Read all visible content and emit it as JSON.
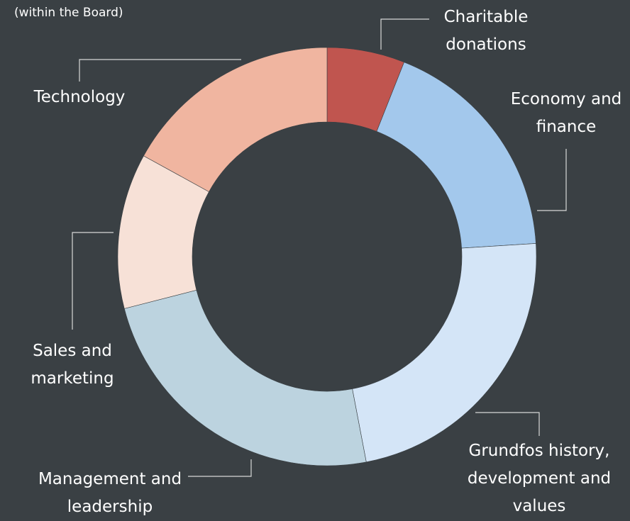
{
  "chart_data": {
    "type": "donut",
    "subtitle": "(within the Board)",
    "categories": [
      "Charitable donations",
      "Economy and finance",
      "Grundfos history, development and values",
      "Management and leadership",
      "Sales and marketing",
      "Technology"
    ],
    "values": [
      6,
      18,
      23,
      24,
      12,
      17
    ],
    "colors": [
      "#c0554f",
      "#a3c8ec",
      "#d4e5f7",
      "#bcd3df",
      "#f7e1d7",
      "#f0b5a0"
    ]
  }
}
